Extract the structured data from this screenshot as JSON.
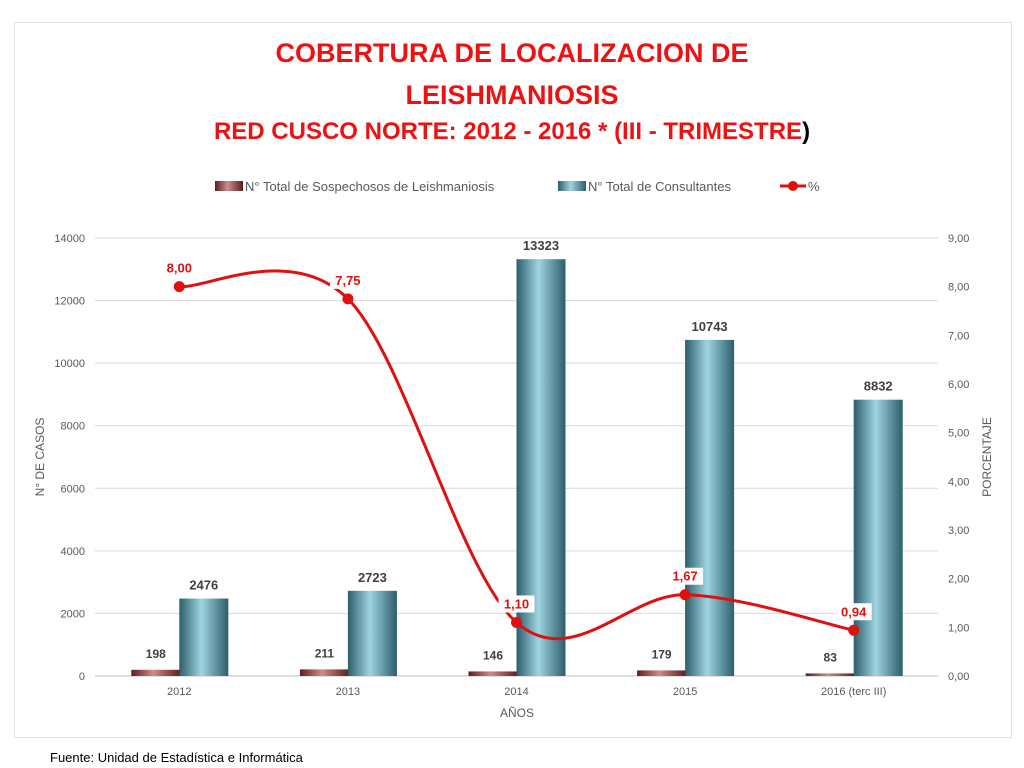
{
  "title": {
    "line1": "COBERTURA DE LOCALIZACION DE",
    "line2": "LEISHMANIOSIS",
    "line3": "RED CUSCO NORTE: 2012 - 2016 * (III - TRIMESTRE",
    "line3_paren": ")"
  },
  "footer": "Fuente: Unidad de Estadística e Informática",
  "colors": {
    "title": "#ee1111",
    "sospechosos": "#8a3535",
    "consultantes": "#4e8c9b",
    "percent_line": "#e01010"
  },
  "chart_data": {
    "type": "bar",
    "categories": [
      "2012",
      "2013",
      "2014",
      "2015",
      "2016 (terc III)"
    ],
    "series": [
      {
        "name": "N° Total de Sospechosos de Leishmaniosis",
        "type": "bar",
        "axis": "left",
        "values": [
          198,
          211,
          146,
          179,
          83
        ],
        "labels": [
          "198",
          "211",
          "146",
          "179",
          "83"
        ]
      },
      {
        "name": "N° Total de Consultantes",
        "type": "bar",
        "axis": "left",
        "values": [
          2476,
          2723,
          13323,
          10743,
          8832
        ],
        "labels": [
          "2476",
          "2723",
          "13323",
          "10743",
          "8832"
        ]
      },
      {
        "name": "%",
        "type": "line",
        "axis": "right",
        "values": [
          8.0,
          7.75,
          1.1,
          1.67,
          0.94
        ],
        "labels": [
          "8,00",
          "7,75",
          "1,10",
          "1,67",
          "0,94"
        ]
      }
    ],
    "xlabel": "AÑOS",
    "ylabel": "N° DE CASOS",
    "y2label": "PORCENTAJE",
    "ylim": [
      0,
      14000
    ],
    "y2lim": [
      0,
      9
    ],
    "yticks": [
      "0",
      "2000",
      "4000",
      "6000",
      "8000",
      "10000",
      "12000",
      "14000"
    ],
    "y2ticks": [
      "0,00",
      "1,00",
      "2,00",
      "3,00",
      "4,00",
      "5,00",
      "6,00",
      "7,00",
      "8,00",
      "9,00"
    ],
    "grid": true,
    "legend": "top-center"
  }
}
